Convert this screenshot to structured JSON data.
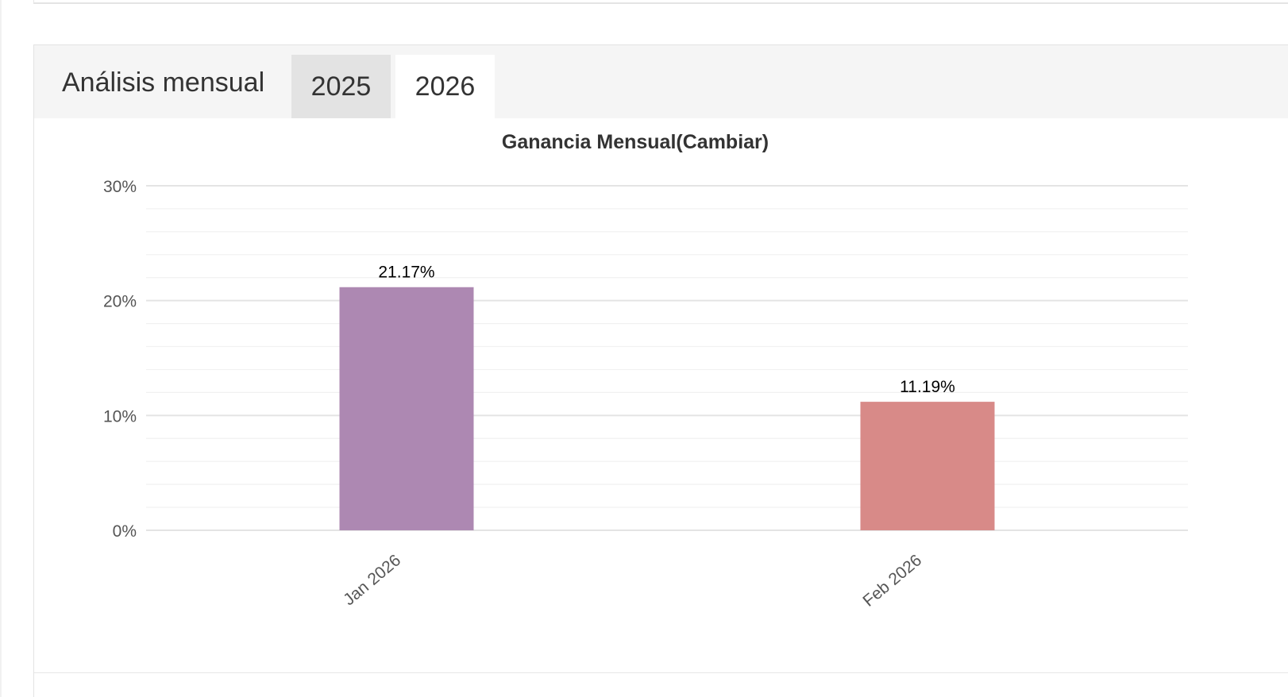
{
  "panel": {
    "title": "Análisis mensual",
    "tabs": [
      {
        "label": "2025",
        "active": false
      },
      {
        "label": "2026",
        "active": true
      }
    ]
  },
  "chart_data": {
    "type": "bar",
    "title": "Ganancia Mensual(Cambiar)",
    "xlabel": "",
    "ylabel": "",
    "categories": [
      "Jan 2026",
      "Feb 2026"
    ],
    "values": [
      21.17,
      11.19
    ],
    "data_labels": [
      "21.17%",
      "11.19%"
    ],
    "colors": [
      "#ad88b2",
      "#d88a88"
    ],
    "ylim": [
      0,
      30
    ],
    "yticks": [
      0,
      10,
      20,
      30
    ],
    "ytick_labels": [
      "0%",
      "10%",
      "20%",
      "30%"
    ],
    "grid": true,
    "legend": "none"
  }
}
